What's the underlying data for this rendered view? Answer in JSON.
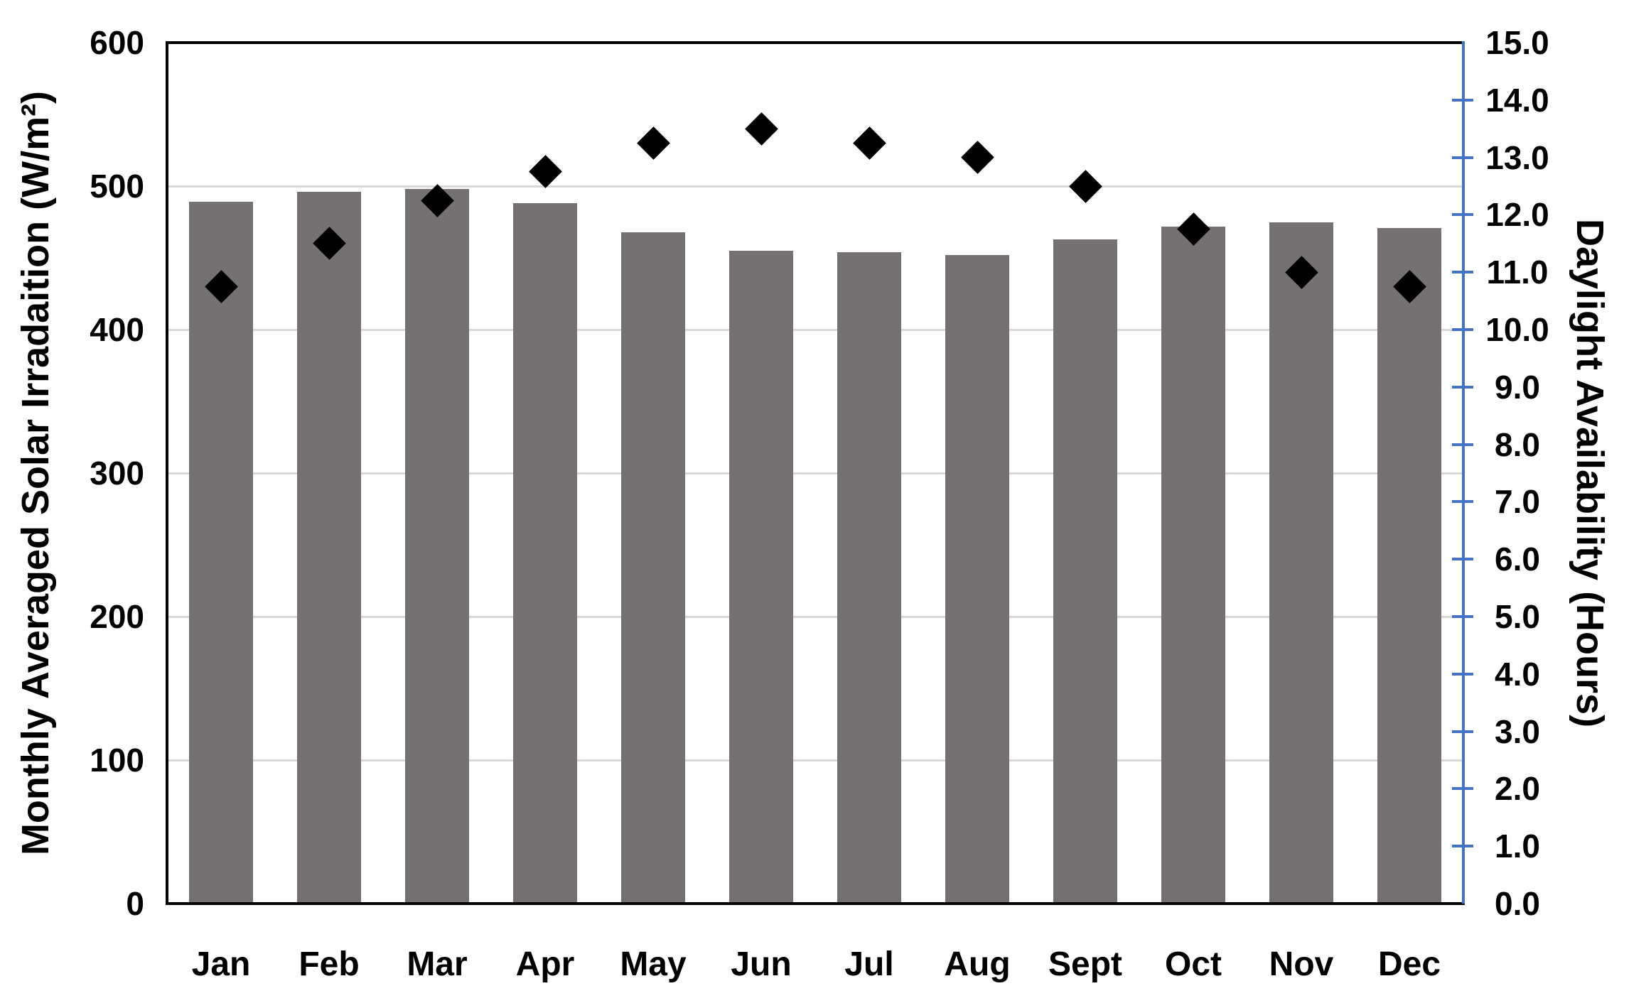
{
  "chart_data": {
    "type": "bar",
    "overlay_type": "scatter",
    "categories": [
      "Jan",
      "Feb",
      "Mar",
      "Apr",
      "May",
      "Jun",
      "Jul",
      "Aug",
      "Sept",
      "Oct",
      "Nov",
      "Dec"
    ],
    "series": [
      {
        "name": "Monthly Averaged Solar Irradaition (W/m²)",
        "type": "bar",
        "axis": "left",
        "values": [
          489,
          496,
          498,
          488,
          468,
          455,
          454,
          452,
          463,
          472,
          475,
          471
        ],
        "color": "#767171"
      },
      {
        "name": "Daylight Availability (Hours)",
        "type": "scatter",
        "marker": "diamond",
        "axis": "right",
        "values": [
          10.75,
          11.5,
          12.25,
          12.75,
          13.25,
          13.5,
          13.25,
          13.0,
          12.5,
          11.75,
          11.0,
          10.75
        ],
        "color": "#000000"
      }
    ],
    "left_axis": {
      "title": "Monthly Averaged Solar Irradaition (W/m²)",
      "min": 0,
      "max": 600,
      "step": 100,
      "tick_labels": [
        "0",
        "100",
        "200",
        "300",
        "400",
        "500",
        "600"
      ]
    },
    "right_axis": {
      "title": "Daylight Availability (Hours)",
      "min": 0,
      "max": 15,
      "step": 1,
      "tick_labels": [
        "0.0",
        "1.0",
        "2.0",
        "3.0",
        "4.0",
        "5.0",
        "6.0",
        "7.0",
        "8.0",
        "9.0",
        "10.0",
        "11.0",
        "12.0",
        "13.0",
        "14.0",
        "15.0"
      ]
    },
    "grid": true,
    "legend": false,
    "colors": {
      "bar": "#767171",
      "marker": "#000000",
      "right_axis": "#4472c4",
      "gridline": "#d9d9d9",
      "axis": "#000000",
      "background": "#ffffff"
    }
  }
}
